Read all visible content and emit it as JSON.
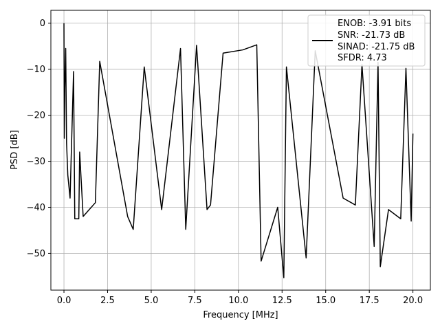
{
  "chart_data": {
    "type": "line",
    "xlabel": "Frequency [MHz]",
    "ylabel": "PSD [dB]",
    "xlim": [
      -0.75,
      21.0
    ],
    "ylim": [
      -58.0,
      2.8
    ],
    "x_ticks": [
      0.0,
      2.5,
      5.0,
      7.5,
      10.0,
      12.5,
      15.0,
      17.5,
      20.0
    ],
    "x_tick_labels": [
      "0.0",
      "2.5",
      "5.0",
      "7.5",
      "10.0",
      "12.5",
      "15.0",
      "17.5",
      "20.0"
    ],
    "y_ticks": [
      0,
      -10,
      -20,
      -30,
      -40,
      -50
    ],
    "y_tick_labels": [
      "0",
      "−10",
      "−20",
      "−30",
      "−40",
      "−50"
    ],
    "grid": true,
    "legend_position": "top-right",
    "legend_lines": [
      "ENOB: -3.91 bits",
      "SNR: -21.73 dB",
      "SINAD: -21.75 dB",
      "SFDR: 4.73"
    ],
    "line_color": "#000000",
    "series": [
      {
        "x": [
          0.0,
          0.02,
          0.05,
          0.1,
          0.15,
          0.22,
          0.35,
          0.55,
          0.62,
          0.85,
          0.9,
          1.1,
          1.8,
          2.05,
          3.65,
          3.97,
          4.6,
          5.6,
          6.68,
          6.98,
          7.6,
          8.2,
          8.4,
          9.12,
          10.25,
          11.05,
          11.3,
          12.25,
          12.6,
          12.75,
          13.88,
          14.4,
          16.0,
          16.7,
          17.08,
          17.78,
          18.0,
          18.13,
          18.6,
          19.3,
          19.6,
          19.9,
          20.0
        ],
        "y": [
          0.0,
          -25.0,
          -14.0,
          -5.5,
          -26.0,
          -33.0,
          -38.0,
          -10.5,
          -42.5,
          -42.5,
          -28.0,
          -42.0,
          -39.0,
          -8.3,
          -42.0,
          -44.8,
          -9.5,
          -40.5,
          -5.5,
          -44.8,
          -4.8,
          -40.5,
          -39.5,
          -6.5,
          -5.8,
          -4.7,
          -51.7,
          -40.0,
          -55.3,
          -9.5,
          -51.0,
          -6.0,
          -38.0,
          -39.5,
          -9.0,
          -48.5,
          -8.5,
          -52.9,
          -40.5,
          -42.5,
          -9.8,
          -43.0,
          -24.0
        ]
      }
    ]
  }
}
